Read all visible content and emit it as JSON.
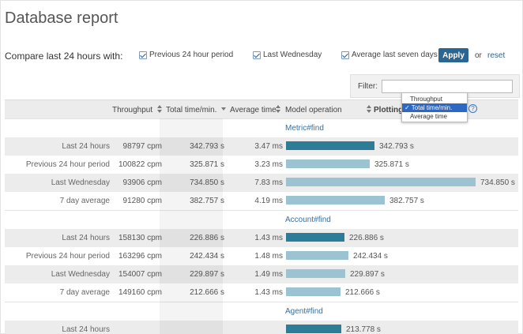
{
  "page": {
    "title": "Database report"
  },
  "compare": {
    "label": "Compare last 24 hours with:",
    "options": [
      {
        "label": "Previous 24 hour period",
        "checked": true
      },
      {
        "label": "Last Wednesday",
        "checked": true
      },
      {
        "label": "Average last seven days",
        "checked": true
      }
    ],
    "apply_label": "Apply",
    "or_text": "or",
    "reset_label": "reset"
  },
  "filter": {
    "label": "Filter:",
    "value": ""
  },
  "table": {
    "headers": {
      "throughput": "Throughput",
      "total_time": "Total time/min.",
      "average_time": "Average time",
      "model_operation": "Model operation",
      "plotting": "Plotting"
    },
    "plotting_options": [
      "Throughput",
      "Total time/min.",
      "Average time"
    ],
    "plotting_selected": "Total time/min.",
    "help_icon": "?",
    "groups": [
      {
        "name": "Metric#find",
        "rows": [
          {
            "label": "Last 24 hours",
            "throughput": "98797 cpm",
            "total_time": "342.793 s",
            "avg_time": "3.47 ms",
            "bar_value": 342.793,
            "bar_label": "342.793 s"
          },
          {
            "label": "Previous 24 hour period",
            "throughput": "100822 cpm",
            "total_time": "325.871 s",
            "avg_time": "3.23 ms",
            "bar_value": 325.871,
            "bar_label": "325.871 s"
          },
          {
            "label": "Last Wednesday",
            "throughput": "93906 cpm",
            "total_time": "734.850 s",
            "avg_time": "7.83 ms",
            "bar_value": 734.85,
            "bar_label": "734.850 s"
          },
          {
            "label": "7 day average",
            "throughput": "91280 cpm",
            "total_time": "382.757 s",
            "avg_time": "4.19 ms",
            "bar_value": 382.757,
            "bar_label": "382.757 s"
          }
        ]
      },
      {
        "name": "Account#find",
        "rows": [
          {
            "label": "Last 24 hours",
            "throughput": "158130 cpm",
            "total_time": "226.886 s",
            "avg_time": "1.43 ms",
            "bar_value": 226.886,
            "bar_label": "226.886 s"
          },
          {
            "label": "Previous 24 hour period",
            "throughput": "163296 cpm",
            "total_time": "242.434 s",
            "avg_time": "1.48 ms",
            "bar_value": 242.434,
            "bar_label": "242.434 s"
          },
          {
            "label": "Last Wednesday",
            "throughput": "154007 cpm",
            "total_time": "229.897 s",
            "avg_time": "1.49 ms",
            "bar_value": 229.897,
            "bar_label": "229.897 s"
          },
          {
            "label": "7 day average",
            "throughput": "149160 cpm",
            "total_time": "212.666 s",
            "avg_time": "1.43 ms",
            "bar_value": 212.666,
            "bar_label": "212.666 s"
          }
        ]
      },
      {
        "name": "Agent#find",
        "rows": [
          {
            "label": "Last 24 hours",
            "throughput": "",
            "total_time": "",
            "avg_time": "",
            "bar_value": 213.778,
            "bar_label": "213.778 s"
          }
        ]
      }
    ]
  },
  "colors": {
    "bar_current": "#2e7d98",
    "bar_compare": "#9cc3d2",
    "apply_button": "#2b6591",
    "link": "#2b6591"
  }
}
